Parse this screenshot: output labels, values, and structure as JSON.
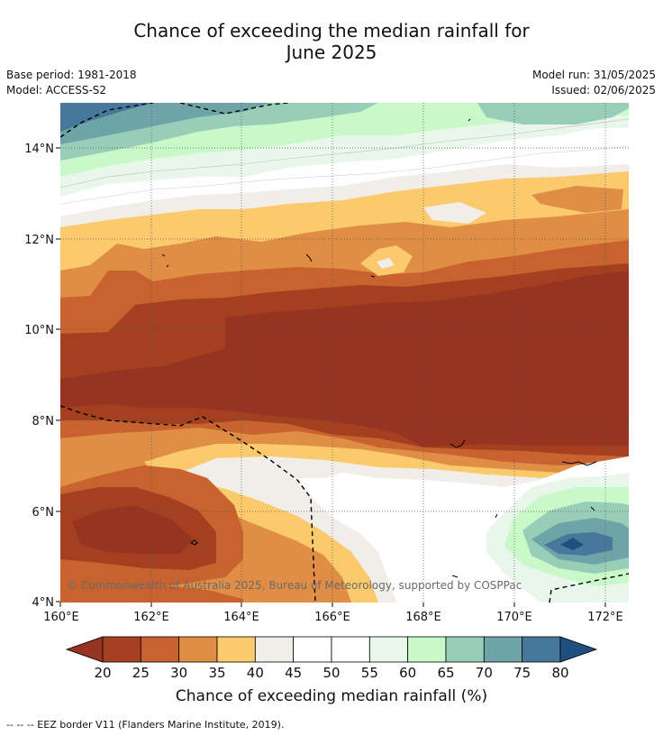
{
  "title": {
    "line1": "Chance of exceeding the median rainfall for",
    "line2": "June 2025"
  },
  "meta": {
    "base_period": "Base period: 1981-2018",
    "model": "Model: ACCESS-S2",
    "model_run": "Model run: 31/05/2025",
    "issued": "Issued: 02/06/2025"
  },
  "map": {
    "lon_ticks": [
      "160°E",
      "162°E",
      "164°E",
      "166°E",
      "168°E",
      "170°E",
      "172°E"
    ],
    "lat_ticks": [
      "14°N",
      "12°N",
      "10°N",
      "8°N",
      "6°N",
      "4°N"
    ],
    "copyright": "© Commonwealth of Australia 2025, Bureau of Meteorology, supported by COSPPac",
    "lon_range": [
      160,
      172.5
    ],
    "lat_range": [
      4,
      15
    ],
    "gridlines": true
  },
  "colorbar": {
    "ticks": [
      "20",
      "25",
      "30",
      "35",
      "40",
      "45",
      "50",
      "55",
      "60",
      "65",
      "70",
      "75",
      "80"
    ],
    "colors": [
      "#a4401f",
      "#c8622e",
      "#e08e45",
      "#fbca6c",
      "#f1ede8",
      "#ffffff",
      "#ffffff",
      "#e9f6ea",
      "#c9f9c8",
      "#98ceb8",
      "#6ea4a8",
      "#47789b"
    ],
    "under_color": "#963321",
    "over_color": "#1e4f7f",
    "title": "Chance of exceeding median rainfall (%)"
  },
  "footnote": "--  --  -- EEZ border V11 (Flanders Marine Institute, 2019)."
}
